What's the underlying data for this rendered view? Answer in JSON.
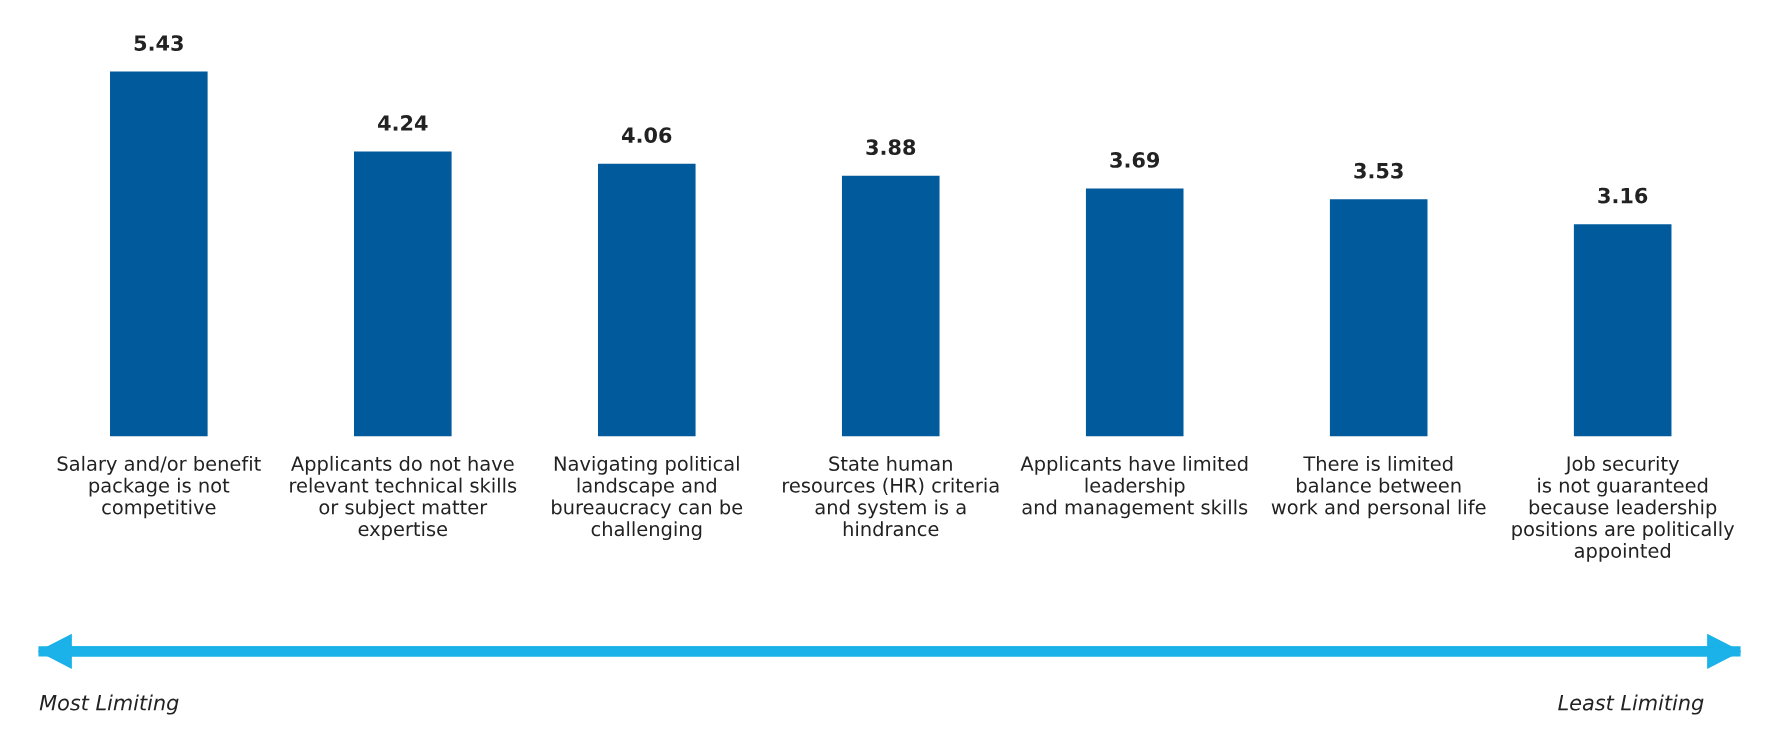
{
  "chart_data": {
    "type": "bar",
    "categories": [
      "Salary and/or benefit\npackage is not\ncompetitive",
      "Applicants do not have\nrelevant technical skills\nor subject matter\nexpertise",
      "Navigating political\nlandscape and\nbureaucracy can be\nchallenging",
      "State human\nresources (HR) criteria\nand system is a\nhindrance",
      "Applicants have limited\nleadership\nand management skills",
      "There is limited\nbalance between\nwork and personal life",
      "Job security\nis not guaranteed\nbecause leadership\npositions are politically\nappointed"
    ],
    "values": [
      5.43,
      4.24,
      4.06,
      3.88,
      3.69,
      3.53,
      3.16
    ],
    "color": "#005a9c",
    "data_labels": true,
    "annotations": [
      "Most Limiting",
      "Least Limiting"
    ]
  }
}
